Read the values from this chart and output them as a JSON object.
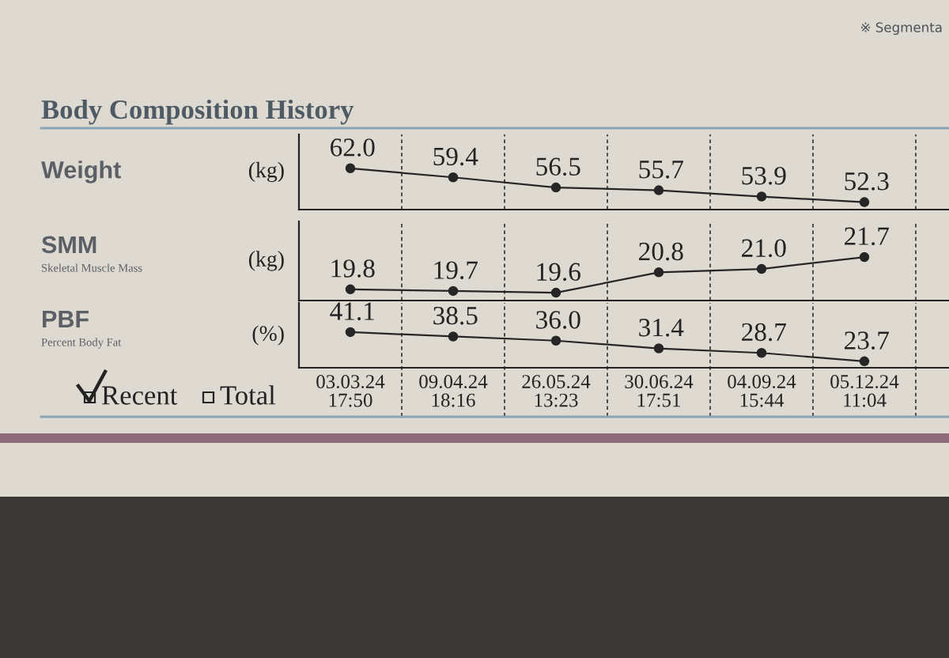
{
  "chart_data": [
    {
      "type": "line",
      "ylabel": "(kg)",
      "annotations": [
        "Body Composition History",
        "※ Segmenta",
        "Weight"
      ],
      "categories": [
        null,
        null,
        null,
        null,
        null,
        null
      ],
      "series": [
        {
          "color": "#262626",
          "values": [
            62.0,
            59.4,
            56.5,
            55.7,
            53.9,
            52.3
          ],
          "value_labels": [
            "62.0",
            "59.4",
            "56.5",
            "55.7",
            "53.9",
            "52.3"
          ]
        }
      ],
      "marker": "circle",
      "line_style": "solid",
      "grid": "x",
      "tick_labels": false
    },
    {
      "type": "line",
      "ylabel": "(kg)",
      "annotations": [
        "SMM",
        "Skeletal Muscle Mass"
      ],
      "categories": [
        null,
        null,
        null,
        null,
        null,
        null
      ],
      "series": [
        {
          "color": "#262626",
          "values": [
            19.8,
            19.7,
            19.6,
            20.8,
            21.0,
            21.7
          ],
          "value_labels": [
            "19.8",
            "19.7",
            "19.6",
            "20.8",
            "21.0",
            "21.7"
          ]
        }
      ],
      "marker": "circle",
      "line_style": "solid",
      "grid": "x",
      "tick_labels": false
    },
    {
      "type": "line",
      "ylabel": "(%)",
      "annotations": [
        "PBF",
        "Percent Body Fat",
        "Recent",
        "Total"
      ],
      "categories": [
        "03.03.24\n17:50",
        "09.04.24\n18:16",
        "26.05.24\n13:23",
        "30.06.24\n17:51",
        "04.09.24\n15:44",
        "05.12.24\n11:04"
      ],
      "series": [
        {
          "color": "#262626",
          "values": [
            41.1,
            38.5,
            36.0,
            31.4,
            28.7,
            23.7
          ],
          "value_labels": [
            "41.1",
            "38.5",
            "36.0",
            "31.4",
            "28.7",
            "23.7"
          ]
        }
      ],
      "marker": "circle",
      "line_style": "solid",
      "grid": "x",
      "tick_labels": "x"
    }
  ]
}
